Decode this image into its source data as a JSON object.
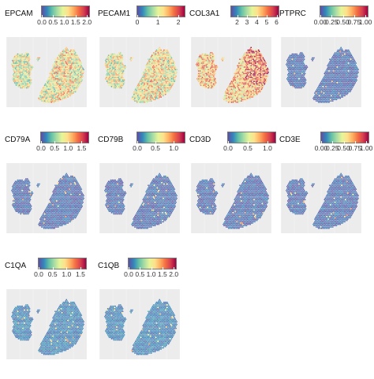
{
  "panels": [
    {
      "gene": "EPCAM",
      "ticks": [
        "0.0",
        "0.5",
        "1.0",
        "1.5",
        "2.0"
      ],
      "max": 2.1,
      "level": 0.45,
      "hot_region": "center"
    },
    {
      "gene": "PECAM1",
      "ticks": [
        "0",
        "1",
        "2"
      ],
      "max": 2.3,
      "level": 0.45,
      "hot_region": "center"
    },
    {
      "gene": "COL3A1",
      "ticks": [
        "2",
        "3",
        "4",
        "5",
        "6"
      ],
      "max": 6.2,
      "level": 0.6,
      "hot_region": "right"
    },
    {
      "gene": "PTPRC",
      "ticks": [
        "0.00",
        "0.25",
        "0.50",
        "0.75",
        "1.00"
      ],
      "max": 1.05,
      "level": 0.05,
      "hot_region": "none"
    },
    {
      "gene": "CD79A",
      "ticks": [
        "0.0",
        "0.5",
        "1.0",
        "1.5"
      ],
      "max": 1.75,
      "level": 0.05,
      "hot_region": "none"
    },
    {
      "gene": "CD79B",
      "ticks": [
        "0.0",
        "0.5",
        "1.0"
      ],
      "max": 1.3,
      "level": 0.05,
      "hot_region": "none"
    },
    {
      "gene": "CD3D",
      "ticks": [
        "0.0",
        "0.5",
        "1.0"
      ],
      "max": 1.2,
      "level": 0.05,
      "hot_region": "none"
    },
    {
      "gene": "CD3E",
      "ticks": [
        "0.00",
        "0.25",
        "0.50",
        "0.75",
        "1.00"
      ],
      "max": 1.05,
      "level": 0.05,
      "hot_region": "none"
    },
    {
      "gene": "C1QA",
      "ticks": [
        "0.0",
        "0.5",
        "1.0",
        "1.5"
      ],
      "max": 1.7,
      "level": 0.1,
      "hot_region": "none"
    },
    {
      "gene": "C1QB",
      "ticks": [
        "0.0",
        "0.5",
        "1.0",
        "1.5",
        "2.0"
      ],
      "max": 2.1,
      "level": 0.1,
      "hot_region": "none"
    }
  ],
  "colorscale": [
    "#5e4fa2",
    "#3288bd",
    "#66c2a5",
    "#abdda4",
    "#e6f598",
    "#fee08b",
    "#fdae61",
    "#f46d43",
    "#d53e4f",
    "#9e0142"
  ]
}
